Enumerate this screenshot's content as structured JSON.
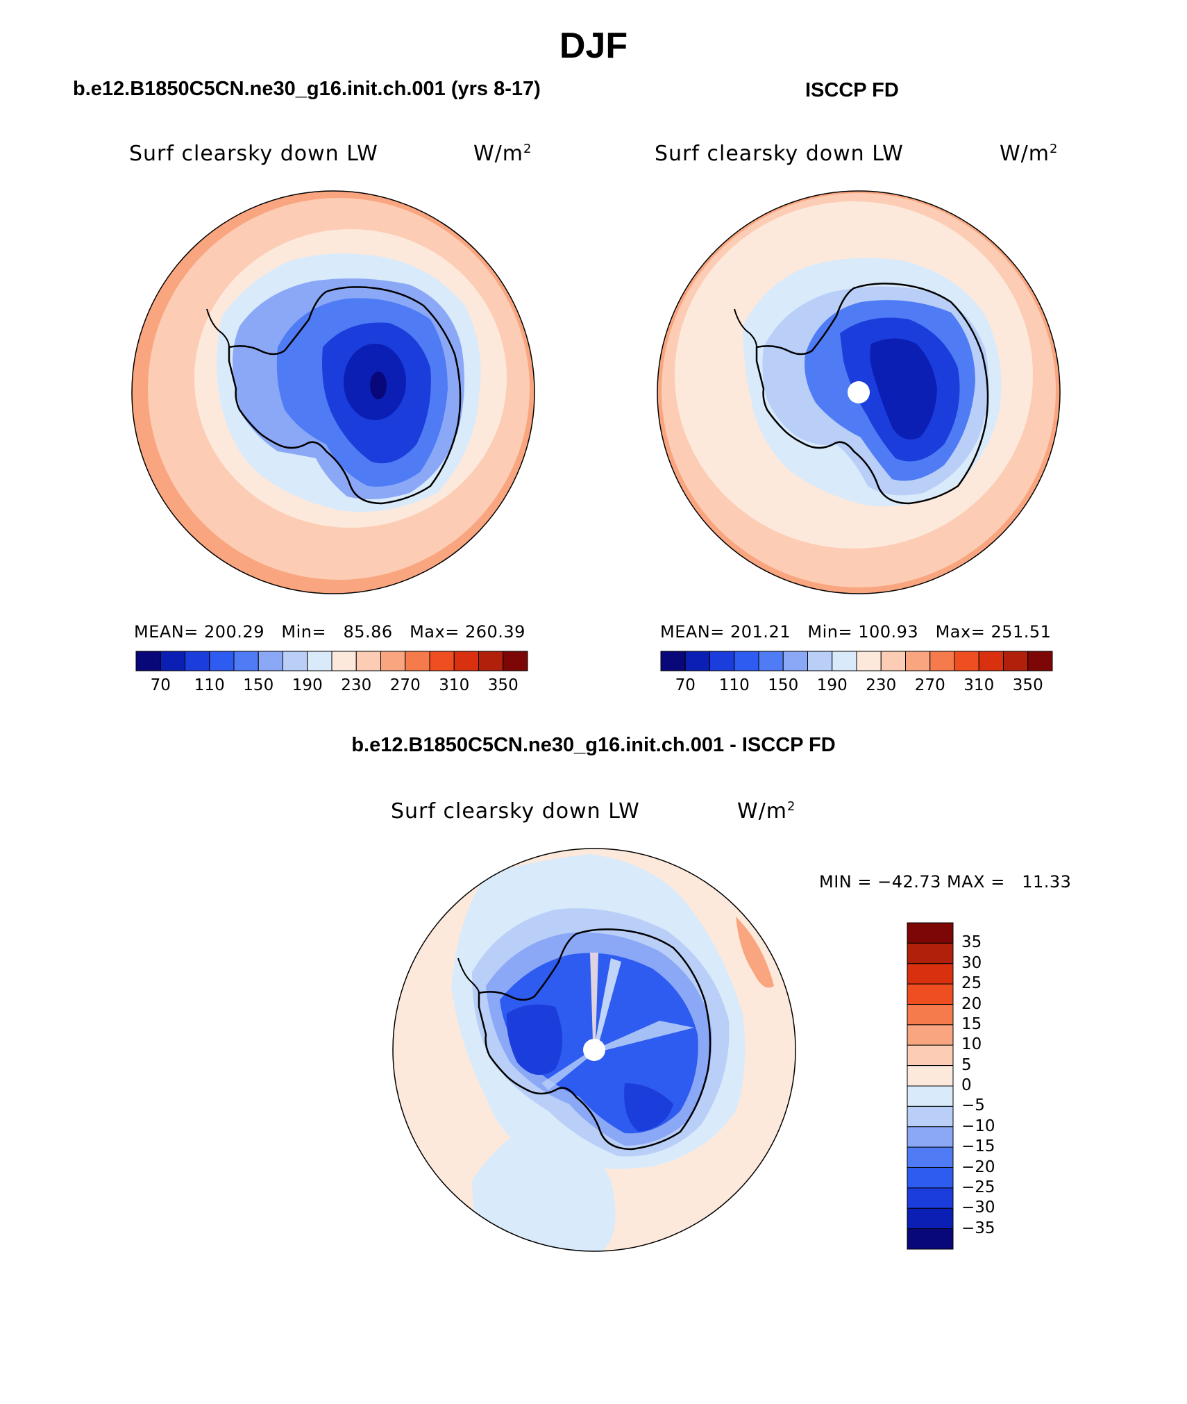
{
  "figure": {
    "season": "DJF",
    "model_title": "b.e12.B1850C5CN.ne30_g16.init.ch.001 (yrs 8-17)",
    "obs_title": "ISCCP FD",
    "diff_title": "b.e12.B1850C5CN.ne30_g16.init.ch.001 - ISCCP FD"
  },
  "panels": {
    "model": {
      "variable": "Surf clearsky down LW",
      "units_base": "W/m",
      "units_exp": "2",
      "stats": {
        "mean_label": "MEAN=",
        "mean": "200.29",
        "min_label": "Min=",
        "min": "85.86",
        "max_label": "Max=",
        "max": "260.39"
      }
    },
    "obs": {
      "variable": "Surf clearsky down LW",
      "units_base": "W/m",
      "units_exp": "2",
      "stats": {
        "mean_label": "MEAN=",
        "mean": "201.21",
        "min_label": "Min=",
        "min": "100.93",
        "max_label": "Max=",
        "max": "251.51"
      }
    },
    "diff": {
      "variable": "Surf clearsky down LW",
      "units_base": "W/m",
      "units_exp": "2",
      "stats_text": "MIN = −42.73 MAX =   11.33"
    }
  },
  "colorbars": {
    "main": {
      "colors": [
        "#08087a",
        "#0b1fb5",
        "#1a3ddb",
        "#2e5bf0",
        "#4f7cf5",
        "#8ba8f7",
        "#b9cff8",
        "#d9eafa",
        "#fde9dc",
        "#fccdb4",
        "#f9a57f",
        "#f57a4c",
        "#ef4e20",
        "#d93010",
        "#b1200a",
        "#7d0706"
      ],
      "tick_labels": [
        "70",
        "110",
        "150",
        "190",
        "230",
        "270",
        "310",
        "350"
      ]
    },
    "diff": {
      "colors": [
        "#08087a",
        "#0b1fb5",
        "#1a3ddb",
        "#2e5bf0",
        "#4f7cf5",
        "#8ba8f7",
        "#b9cff8",
        "#d9eafa",
        "#fde9dc",
        "#fccdb4",
        "#f9a57f",
        "#f57a4c",
        "#ef4e20",
        "#d93010",
        "#b1200a",
        "#7d0706"
      ],
      "tick_labels": [
        "35",
        "30",
        "25",
        "20",
        "15",
        "10",
        "5",
        "0",
        "−5",
        "−10",
        "−15",
        "−20",
        "−25",
        "−30",
        "−35"
      ]
    }
  },
  "map_fields": {
    "model": {
      "ocean_outer": 260,
      "ocean_mid": 245,
      "sea_ice": 195,
      "coast": 170,
      "interior": 120,
      "deep": 85.86
    },
    "obs": {
      "ocean_outer": 250,
      "ocean_mid": 235,
      "sea_ice": 200,
      "coast": 175,
      "interior": 130,
      "deep": 100.93
    },
    "diff": {
      "ocean": 2,
      "ocean_edge": 8,
      "near_coast": -3,
      "coast": -12,
      "interior": -22,
      "min": -42.73,
      "max": 11.33
    }
  }
}
